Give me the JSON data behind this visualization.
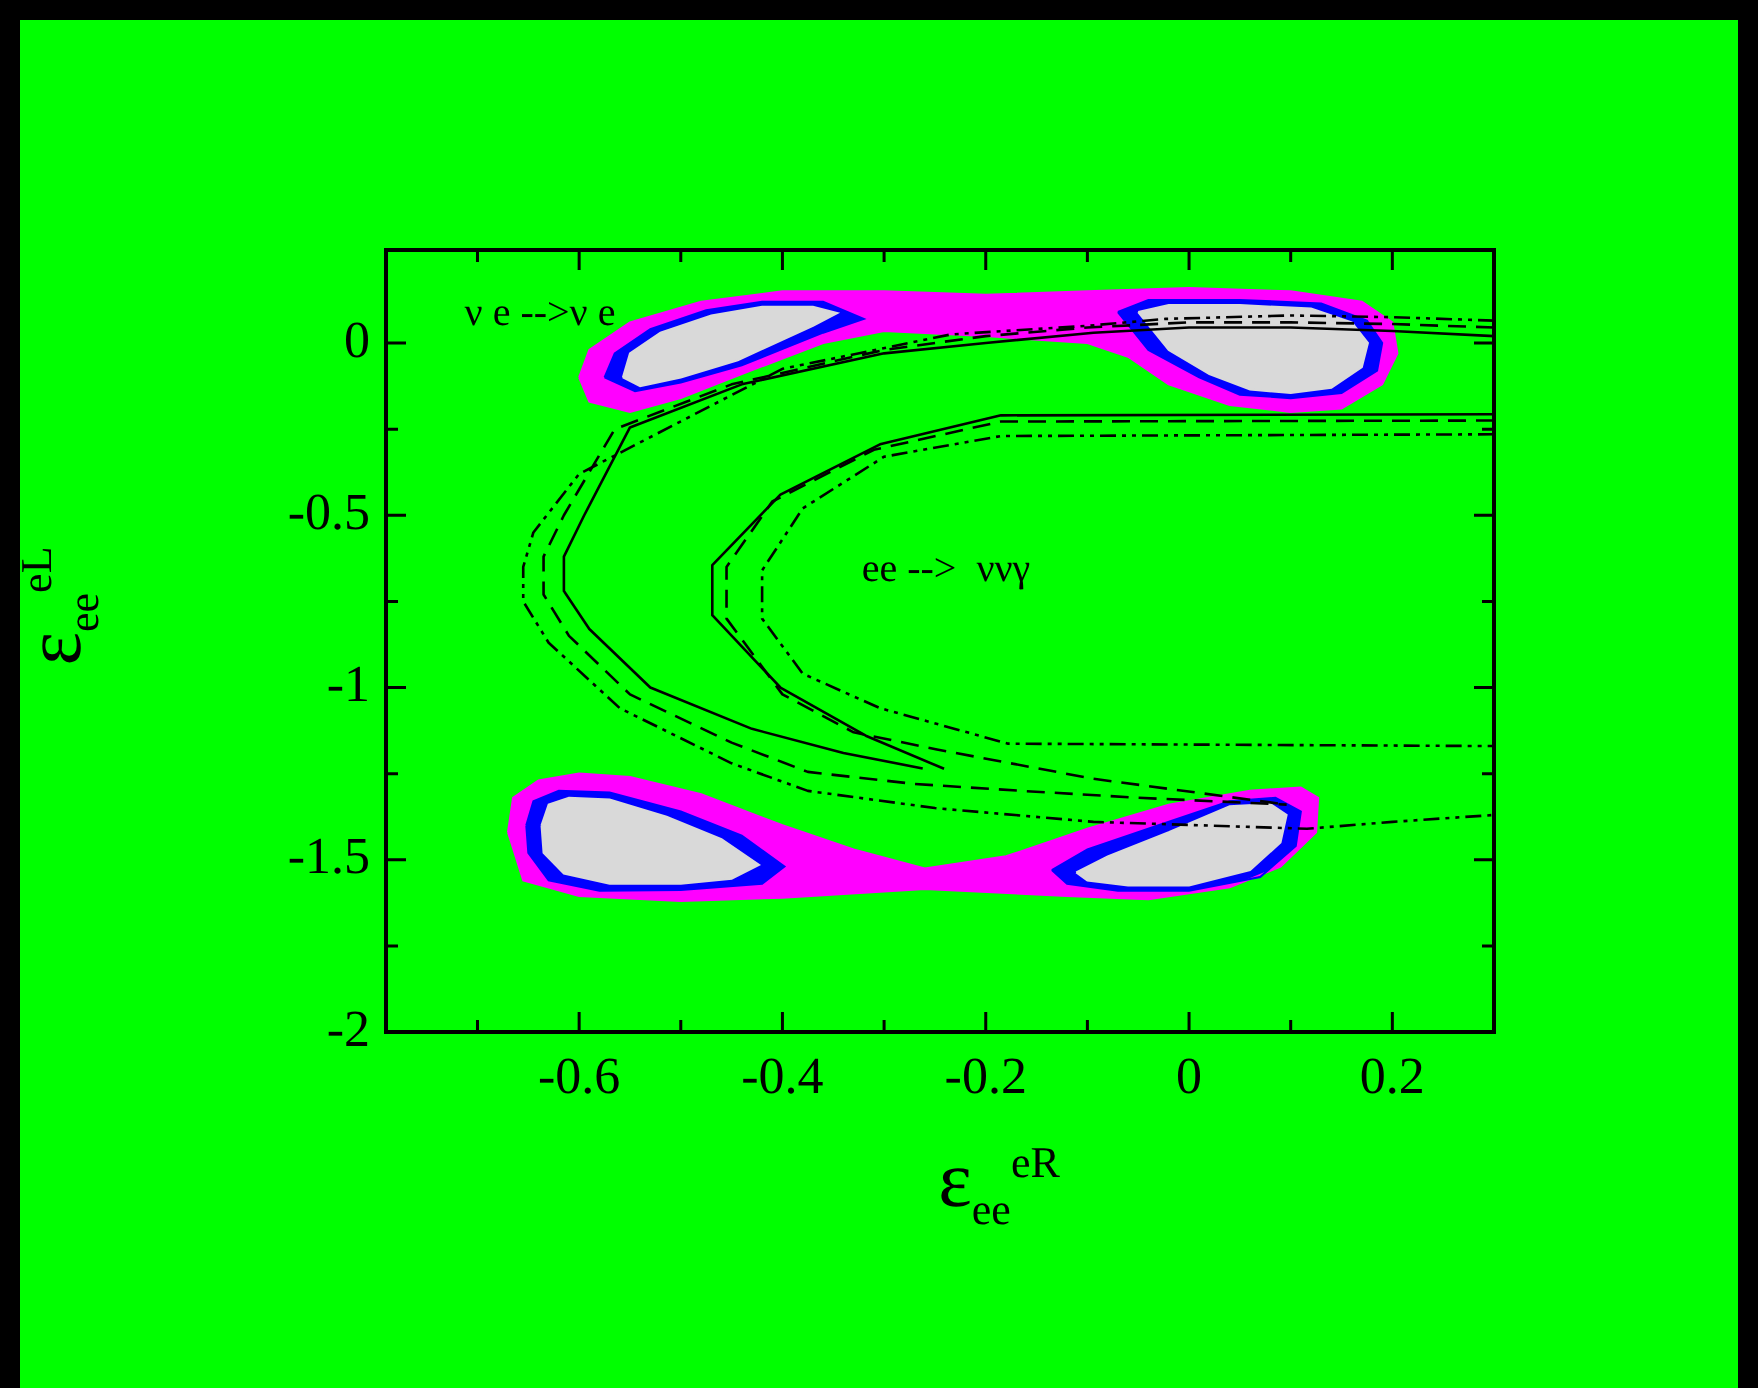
{
  "chart_data": {
    "type": "line",
    "xlabel": "ε$_{ee}$$^{eR}$",
    "ylabel": "ε$_{ee}$$^{eL}$",
    "xlim": [
      -0.79,
      0.3
    ],
    "ylim": [
      -2,
      0.27
    ],
    "xticks": [
      {
        "value": -0.7,
        "label": null
      },
      -0.6,
      {
        "value": -0.5,
        "label": null
      },
      -0.4,
      {
        "value": -0.3,
        "label": null
      },
      -0.2,
      {
        "value": -0.1,
        "label": null
      },
      0,
      {
        "value": 0.1,
        "label": null
      },
      0.2
    ],
    "yticks": [
      -2,
      {
        "value": -1.75,
        "label": null
      },
      -1.5,
      {
        "value": -1.25,
        "label": null
      },
      -1,
      {
        "value": -0.75,
        "label": null
      },
      -0.5,
      {
        "value": -0.25,
        "label": null
      },
      0
    ],
    "grid": false,
    "legend": false,
    "annotations": [
      "ν e -->ν e",
      "ee -->  ννγ"
    ],
    "series": [
      {
        "type": "area",
        "color": "#ff00ff",
        "x": [
          -0.6,
          -0.59,
          -0.55,
          -0.48,
          -0.4,
          -0.3,
          -0.2,
          -0.1,
          0.0,
          0.1,
          0.17,
          0.2,
          0.205,
          0.19,
          0.15,
          0.1,
          0.04,
          -0.02,
          -0.06,
          -0.1,
          -0.2,
          -0.3,
          -0.36,
          -0.44,
          -0.5,
          -0.55,
          -0.59,
          -0.6
        ],
        "values": [
          -0.1,
          -0.02,
          0.06,
          0.12,
          0.15,
          0.15,
          0.14,
          0.15,
          0.16,
          0.15,
          0.12,
          0.06,
          -0.03,
          -0.12,
          -0.19,
          -0.2,
          -0.18,
          -0.12,
          -0.04,
          0.0,
          0.02,
          0.035,
          0.0,
          -0.09,
          -0.16,
          -0.2,
          -0.17,
          -0.1
        ]
      },
      {
        "type": "area",
        "color": "#ff00ff",
        "x": [
          -0.67,
          -0.665,
          -0.64,
          -0.6,
          -0.55,
          -0.48,
          -0.4,
          -0.33,
          -0.26,
          -0.18,
          -0.1,
          -0.02,
          0.06,
          0.11,
          0.127,
          0.125,
          0.09,
          0.04,
          -0.04,
          -0.12,
          -0.26,
          -0.4,
          -0.5,
          -0.6,
          -0.655,
          -0.67
        ],
        "values": [
          -1.42,
          -1.32,
          -1.27,
          -1.25,
          -1.26,
          -1.31,
          -1.4,
          -1.47,
          -1.525,
          -1.49,
          -1.41,
          -1.34,
          -1.3,
          -1.29,
          -1.32,
          -1.42,
          -1.52,
          -1.58,
          -1.615,
          -1.605,
          -1.585,
          -1.61,
          -1.62,
          -1.605,
          -1.56,
          -1.42
        ]
      },
      {
        "type": "area",
        "color": "#0000ff",
        "x": [
          -0.575,
          -0.565,
          -0.53,
          -0.475,
          -0.42,
          -0.36,
          -0.32,
          -0.36,
          -0.44,
          -0.5,
          -0.545,
          -0.575
        ],
        "values": [
          -0.1,
          -0.03,
          0.04,
          0.095,
          0.12,
          0.12,
          0.07,
          0.03,
          -0.065,
          -0.115,
          -0.14,
          -0.1
        ]
      },
      {
        "type": "area",
        "color": "#0000ff",
        "x": [
          -0.07,
          -0.04,
          0.05,
          0.13,
          0.175,
          0.19,
          0.185,
          0.15,
          0.1,
          0.05,
          0.01,
          -0.04,
          -0.07
        ],
        "values": [
          0.09,
          0.125,
          0.125,
          0.115,
          0.065,
          0.0,
          -0.08,
          -0.145,
          -0.16,
          -0.15,
          -0.1,
          -0.02,
          0.09
        ]
      },
      {
        "type": "area",
        "color": "#0000ff",
        "x": [
          -0.652,
          -0.645,
          -0.62,
          -0.57,
          -0.5,
          -0.44,
          -0.398,
          -0.42,
          -0.5,
          -0.58,
          -0.63,
          -0.65,
          -0.652
        ],
        "values": [
          -1.4,
          -1.33,
          -1.3,
          -1.305,
          -1.36,
          -1.43,
          -1.52,
          -1.57,
          -1.588,
          -1.59,
          -1.56,
          -1.48,
          -1.4
        ]
      },
      {
        "type": "area",
        "color": "#0000ff",
        "x": [
          -0.135,
          -0.1,
          -0.03,
          0.04,
          0.085,
          0.11,
          0.105,
          0.07,
          0.0,
          -0.07,
          -0.12,
          -0.135
        ],
        "values": [
          -1.53,
          -1.47,
          -1.4,
          -1.33,
          -1.32,
          -1.36,
          -1.46,
          -1.55,
          -1.59,
          -1.59,
          -1.57,
          -1.53
        ]
      },
      {
        "type": "area",
        "color": "#d9d9d9",
        "x": [
          -0.557,
          -0.55,
          -0.52,
          -0.47,
          -0.42,
          -0.37,
          -0.346,
          -0.37,
          -0.444,
          -0.5,
          -0.54,
          -0.557
        ],
        "values": [
          -0.1,
          -0.03,
          0.03,
          0.08,
          0.105,
          0.105,
          0.087,
          0.05,
          -0.05,
          -0.1,
          -0.125,
          -0.1
        ]
      },
      {
        "type": "area",
        "color": "#d9d9d9",
        "x": [
          -0.05,
          -0.02,
          0.05,
          0.12,
          0.16,
          0.176,
          0.17,
          0.14,
          0.1,
          0.06,
          0.02,
          -0.02,
          -0.05
        ],
        "values": [
          0.09,
          0.11,
          0.11,
          0.1,
          0.06,
          0.0,
          -0.07,
          -0.13,
          -0.145,
          -0.135,
          -0.09,
          -0.02,
          0.09
        ]
      },
      {
        "type": "area",
        "color": "#d9d9d9",
        "x": [
          -0.637,
          -0.63,
          -0.61,
          -0.57,
          -0.514,
          -0.46,
          -0.423,
          -0.45,
          -0.5,
          -0.57,
          -0.615,
          -0.635,
          -0.637
        ],
        "values": [
          -1.4,
          -1.34,
          -1.32,
          -1.325,
          -1.375,
          -1.44,
          -1.515,
          -1.555,
          -1.57,
          -1.57,
          -1.54,
          -1.48,
          -1.4
        ]
      },
      {
        "type": "area",
        "color": "#d9d9d9",
        "x": [
          -0.111,
          -0.08,
          -0.02,
          0.04,
          0.08,
          0.096,
          0.09,
          0.06,
          0.0,
          -0.06,
          -0.1,
          -0.111
        ],
        "values": [
          -1.537,
          -1.49,
          -1.42,
          -1.345,
          -1.338,
          -1.37,
          -1.45,
          -1.53,
          -1.575,
          -1.575,
          -1.56,
          -1.537
        ]
      },
      {
        "color": "#000000",
        "line_style": "solid",
        "x": [
          0.3,
          0.2,
          0.1,
          0.0,
          -0.094,
          -0.2,
          -0.3,
          -0.44,
          -0.55,
          -0.595,
          -0.615,
          -0.615,
          -0.59,
          -0.53,
          -0.43,
          -0.34,
          -0.262
        ],
        "values": [
          0.02,
          0.035,
          0.045,
          0.045,
          0.03,
          0.0,
          -0.03,
          -0.12,
          -0.245,
          -0.5,
          -0.62,
          -0.72,
          -0.83,
          -1.0,
          -1.12,
          -1.19,
          -1.235
        ]
      },
      {
        "color": "#000000",
        "line_style": "dashed",
        "x": [
          0.3,
          0.2,
          0.1,
          0.0,
          -0.1,
          -0.2,
          -0.3,
          -0.45,
          -0.565,
          -0.615,
          -0.635,
          -0.635,
          -0.61,
          -0.55,
          -0.45,
          -0.375,
          -0.27,
          -0.165,
          -0.05,
          0.096
        ],
        "values": [
          0.045,
          0.055,
          0.06,
          0.06,
          0.045,
          0.02,
          -0.02,
          -0.12,
          -0.25,
          -0.5,
          -0.62,
          -0.73,
          -0.85,
          -1.02,
          -1.16,
          -1.245,
          -1.28,
          -1.3,
          -1.32,
          -1.34
        ]
      },
      {
        "color": "#000000",
        "line_style": "dotted",
        "x": [
          0.3,
          0.2,
          0.1,
          -0.023,
          -0.1,
          -0.234,
          -0.4,
          -0.6,
          -0.645,
          -0.655,
          -0.655,
          -0.63,
          -0.56,
          -0.45,
          -0.375,
          -0.25,
          -0.094,
          0.116,
          0.2,
          0.3
        ],
        "values": [
          0.065,
          0.075,
          0.08,
          0.07,
          0.05,
          0.025,
          -0.075,
          -0.38,
          -0.55,
          -0.65,
          -0.75,
          -0.87,
          -1.06,
          -1.22,
          -1.3,
          -1.35,
          -1.39,
          -1.41,
          -1.39,
          -1.37
        ]
      },
      {
        "color": "#000000",
        "line_style": "solid",
        "x": [
          0.3,
          -0.185,
          -0.304,
          -0.402,
          -0.469,
          -0.469,
          -0.402,
          -0.318,
          -0.241
        ],
        "values": [
          -0.207,
          -0.21,
          -0.294,
          -0.44,
          -0.645,
          -0.79,
          -1.0,
          -1.14,
          -1.236
        ]
      },
      {
        "color": "#000000",
        "line_style": "dashed",
        "x": [
          0.3,
          -0.185,
          -0.31,
          -0.41,
          -0.455,
          -0.455,
          -0.4,
          -0.33,
          -0.248,
          -0.094,
          0.096
        ],
        "values": [
          -0.225,
          -0.228,
          -0.31,
          -0.46,
          -0.65,
          -0.8,
          -1.02,
          -1.13,
          -1.18,
          -1.265,
          -1.34
        ]
      },
      {
        "color": "#000000",
        "line_style": "dotted",
        "x": [
          0.3,
          -0.185,
          -0.3,
          -0.38,
          -0.42,
          -0.42,
          -0.38,
          -0.304,
          -0.178,
          0.3
        ],
        "values": [
          -0.265,
          -0.27,
          -0.33,
          -0.48,
          -0.66,
          -0.8,
          -0.96,
          -1.06,
          -1.163,
          -1.17
        ]
      }
    ]
  }
}
